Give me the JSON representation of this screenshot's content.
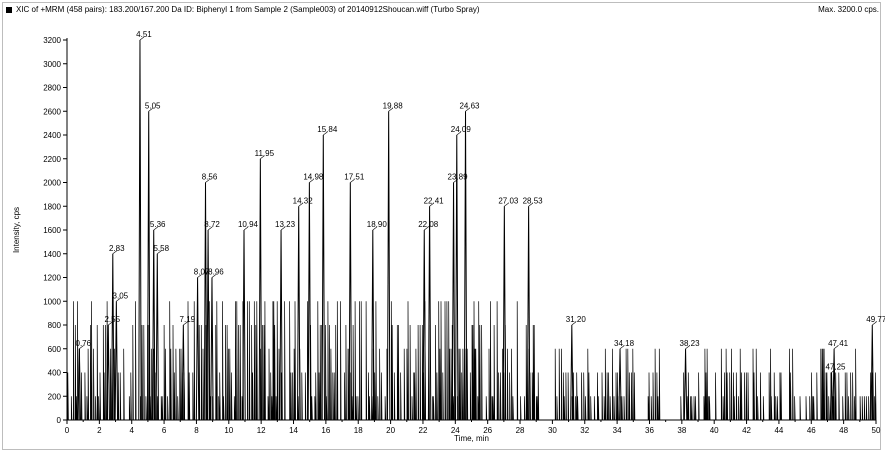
{
  "header": {
    "title": "XIC of +MRM (458 pairs): 183.200/167.200 Da ID: Biphenyl 1 from Sample 2 (Sample003) of 20140912Shoucan.wiff (Turbo Spray)",
    "max_label": "Max. 3200.0 cps."
  },
  "chart_data": {
    "type": "line",
    "title": "XIC of +MRM (458 pairs): 183.200/167.200 Da ID: Biphenyl 1 from Sample 2 (Sample003) of 20140912Shoucan.wiff (Turbo Spray)",
    "xlabel": "Time, min",
    "ylabel": "Intensity, cps",
    "xlim": [
      0,
      50
    ],
    "ylim": [
      0,
      3200
    ],
    "x_ticks": [
      0,
      2,
      4,
      6,
      8,
      10,
      12,
      14,
      16,
      18,
      20,
      22,
      24,
      26,
      28,
      30,
      32,
      34,
      36,
      38,
      40,
      42,
      44,
      46,
      48,
      50
    ],
    "y_ticks": [
      0,
      200,
      400,
      600,
      800,
      1000,
      1200,
      1400,
      1600,
      1800,
      2000,
      2200,
      2400,
      2600,
      2800,
      3000,
      3200
    ],
    "grid": false,
    "peaks": [
      {
        "label": "0.76",
        "x": 0.76,
        "y": 600
      },
      {
        "label": "2.55",
        "x": 2.55,
        "y": 800
      },
      {
        "label": "2.83",
        "x": 2.83,
        "y": 1400
      },
      {
        "label": "3.05",
        "x": 3.05,
        "y": 1000
      },
      {
        "label": "4.51",
        "x": 4.51,
        "y": 3200
      },
      {
        "label": "5.05",
        "x": 5.05,
        "y": 2600
      },
      {
        "label": "5.36",
        "x": 5.36,
        "y": 1600
      },
      {
        "label": "5.58",
        "x": 5.58,
        "y": 1400
      },
      {
        "label": "7.19",
        "x": 7.19,
        "y": 800
      },
      {
        "label": "8.07",
        "x": 8.07,
        "y": 1200
      },
      {
        "label": "8.56",
        "x": 8.56,
        "y": 2000
      },
      {
        "label": "8.72",
        "x": 8.72,
        "y": 1600
      },
      {
        "label": "8.96",
        "x": 8.96,
        "y": 1200
      },
      {
        "label": "10.94",
        "x": 10.94,
        "y": 1600
      },
      {
        "label": "11.95",
        "x": 11.95,
        "y": 2200
      },
      {
        "label": "13.23",
        "x": 13.23,
        "y": 1600
      },
      {
        "label": "14.32",
        "x": 14.32,
        "y": 1800
      },
      {
        "label": "14.98",
        "x": 14.98,
        "y": 2000
      },
      {
        "label": "15.84",
        "x": 15.84,
        "y": 2400
      },
      {
        "label": "17.51",
        "x": 17.51,
        "y": 2000
      },
      {
        "label": "18.90",
        "x": 18.9,
        "y": 1600
      },
      {
        "label": "19.88",
        "x": 19.88,
        "y": 2600
      },
      {
        "label": "22.08",
        "x": 22.08,
        "y": 1600
      },
      {
        "label": "22.41",
        "x": 22.41,
        "y": 1800
      },
      {
        "label": "23.89",
        "x": 23.89,
        "y": 2000
      },
      {
        "label": "24.09",
        "x": 24.09,
        "y": 2400
      },
      {
        "label": "24.63",
        "x": 24.63,
        "y": 2600
      },
      {
        "label": "27.03",
        "x": 27.03,
        "y": 1800
      },
      {
        "label": "28.53",
        "x": 28.53,
        "y": 1800
      },
      {
        "label": "31.20",
        "x": 31.2,
        "y": 800
      },
      {
        "label": "34.18",
        "x": 34.18,
        "y": 600
      },
      {
        "label": "38.23",
        "x": 38.23,
        "y": 600
      },
      {
        "label": "47.25",
        "x": 47.25,
        "y": 400
      },
      {
        "label": "47.41",
        "x": 47.41,
        "y": 600
      },
      {
        "label": "49.77",
        "x": 49.77,
        "y": 800
      }
    ]
  }
}
